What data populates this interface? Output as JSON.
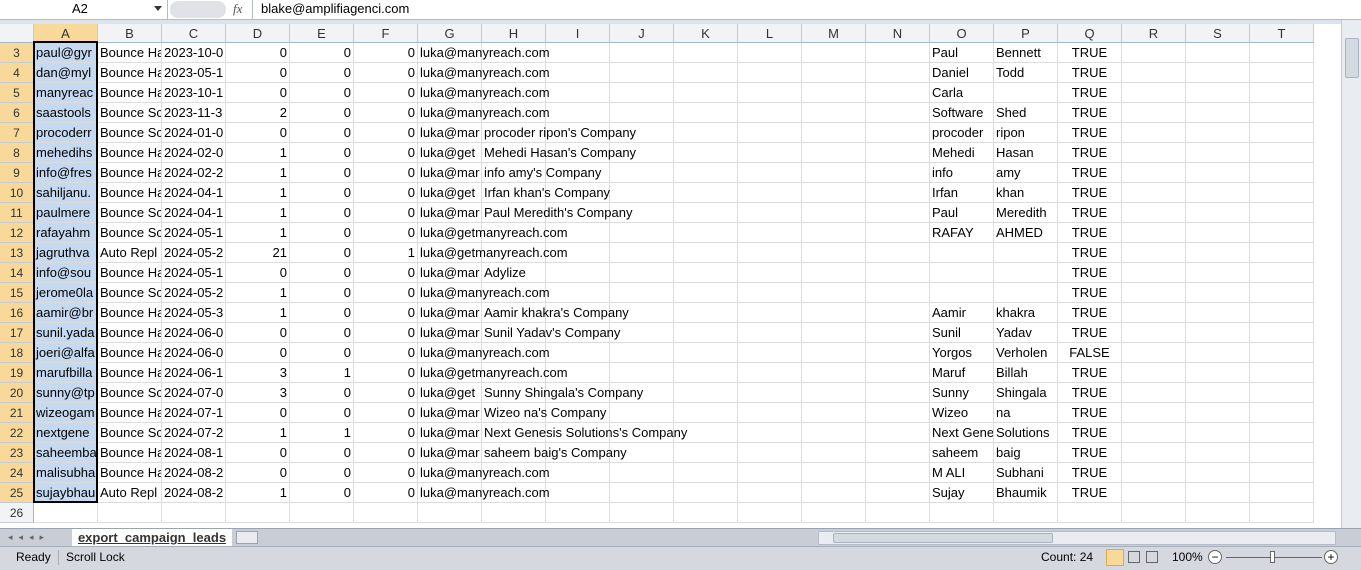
{
  "formula_bar": {
    "name_box": "A2",
    "function_icon": "fx",
    "content": "blake@amplifiagenci.com"
  },
  "columns": [
    "A",
    "B",
    "C",
    "D",
    "E",
    "F",
    "G",
    "H",
    "I",
    "J",
    "K",
    "L",
    "M",
    "N",
    "O",
    "P",
    "Q",
    "R",
    "S",
    "T"
  ],
  "rows": [
    {
      "number": 3,
      "cells": [
        "paul@gyr",
        "Bounce Ha",
        "2023-10-0",
        0,
        0,
        0,
        "luka@manyreach.com",
        null,
        null,
        null,
        null,
        null,
        null,
        null,
        "Paul",
        "Bennett",
        "TRUE",
        null,
        null,
        null
      ]
    },
    {
      "number": 4,
      "cells": [
        "dan@myl",
        "Bounce Ha",
        "2023-05-1",
        0,
        0,
        0,
        "luka@manyreach.com",
        null,
        null,
        null,
        null,
        null,
        null,
        null,
        "Daniel",
        "Todd",
        "TRUE",
        null,
        null,
        null
      ]
    },
    {
      "number": 5,
      "cells": [
        "manyreac",
        "Bounce Ha",
        "2023-10-1",
        0,
        0,
        0,
        "luka@manyreach.com",
        null,
        null,
        null,
        null,
        null,
        null,
        null,
        "Carla",
        null,
        "TRUE",
        null,
        null,
        null
      ]
    },
    {
      "number": 6,
      "cells": [
        "saastools",
        "Bounce Sc",
        "2023-11-3",
        2,
        0,
        0,
        "luka@manyreach.com",
        null,
        null,
        null,
        null,
        null,
        null,
        null,
        "Software",
        "Shed",
        "TRUE",
        null,
        null,
        null
      ]
    },
    {
      "number": 7,
      "cells": [
        "procoderr",
        "Bounce Sc",
        "2024-01-0",
        0,
        0,
        0,
        "luka@mar",
        "procoder ripon's Company",
        null,
        null,
        null,
        null,
        null,
        null,
        "procoder",
        "ripon",
        "TRUE",
        null,
        null,
        null
      ]
    },
    {
      "number": 8,
      "cells": [
        "mehedihs",
        "Bounce Ha",
        "2024-02-0",
        1,
        0,
        0,
        "luka@get",
        "Mehedi Hasan's Company",
        null,
        null,
        null,
        null,
        null,
        null,
        "Mehedi",
        "Hasan",
        "TRUE",
        null,
        null,
        null
      ]
    },
    {
      "number": 9,
      "cells": [
        "info@fres",
        "Bounce Ha",
        "2024-02-2",
        1,
        0,
        0,
        "luka@mar",
        "info amy's Company",
        null,
        null,
        null,
        null,
        null,
        null,
        "info",
        "amy",
        "TRUE",
        null,
        null,
        null
      ]
    },
    {
      "number": 10,
      "cells": [
        "sahiljanu.",
        "Bounce Ha",
        "2024-04-1",
        1,
        0,
        0,
        "luka@get",
        "Irfan khan's Company",
        null,
        null,
        null,
        null,
        null,
        null,
        "Irfan",
        "khan",
        "TRUE",
        null,
        null,
        null
      ]
    },
    {
      "number": 11,
      "cells": [
        "paulmere",
        "Bounce Sc",
        "2024-04-1",
        1,
        0,
        0,
        "luka@mar",
        "Paul Meredith's Company",
        null,
        null,
        null,
        null,
        null,
        null,
        "Paul",
        "Meredith",
        "TRUE",
        null,
        null,
        null
      ]
    },
    {
      "number": 12,
      "cells": [
        "rafayahm",
        "Bounce Sc",
        "2024-05-1",
        1,
        0,
        0,
        "luka@getmanyreach.com",
        null,
        null,
        null,
        null,
        null,
        null,
        null,
        "RAFAY",
        "AHMED",
        "TRUE",
        null,
        null,
        null
      ]
    },
    {
      "number": 13,
      "cells": [
        "jagruthva",
        "Auto Repl",
        "2024-05-2",
        21,
        0,
        1,
        "luka@getmanyreach.com",
        null,
        null,
        null,
        null,
        null,
        null,
        null,
        null,
        null,
        "TRUE",
        null,
        null,
        null
      ]
    },
    {
      "number": 14,
      "cells": [
        "info@sou",
        "Bounce Ha",
        "2024-05-1",
        0,
        0,
        0,
        "luka@mar",
        "Adylize",
        null,
        null,
        null,
        null,
        null,
        null,
        null,
        null,
        "TRUE",
        null,
        null,
        null
      ]
    },
    {
      "number": 15,
      "cells": [
        "jerome0la",
        "Bounce Sc",
        "2024-05-2",
        1,
        0,
        0,
        "luka@manyreach.com",
        null,
        null,
        null,
        null,
        null,
        null,
        null,
        null,
        null,
        "TRUE",
        null,
        null,
        null
      ]
    },
    {
      "number": 16,
      "cells": [
        "aamir@br",
        "Bounce Ha",
        "2024-05-3",
        1,
        0,
        0,
        "luka@mar",
        "Aamir khakra's Company",
        null,
        null,
        null,
        null,
        null,
        null,
        "Aamir",
        "khakra",
        "TRUE",
        null,
        null,
        null
      ]
    },
    {
      "number": 17,
      "cells": [
        "sunil.yada",
        "Bounce Ha",
        "2024-06-0",
        0,
        0,
        0,
        "luka@mar",
        "Sunil Yadav's Company",
        null,
        null,
        null,
        null,
        null,
        null,
        "Sunil",
        "Yadav",
        "TRUE",
        null,
        null,
        null
      ]
    },
    {
      "number": 18,
      "cells": [
        "joeri@alfa",
        "Bounce Ha",
        "2024-06-0",
        0,
        0,
        0,
        "luka@manyreach.com",
        null,
        null,
        null,
        null,
        null,
        null,
        null,
        "Yorgos",
        "Verholen",
        "FALSE",
        null,
        null,
        null
      ]
    },
    {
      "number": 19,
      "cells": [
        "marufbilla",
        "Bounce Ha",
        "2024-06-1",
        3,
        1,
        0,
        "luka@getmanyreach.com",
        null,
        null,
        null,
        null,
        null,
        null,
        null,
        "Maruf",
        "Billah",
        "TRUE",
        null,
        null,
        null
      ]
    },
    {
      "number": 20,
      "cells": [
        "sunny@tp",
        "Bounce Sc",
        "2024-07-0",
        3,
        0,
        0,
        "luka@get",
        "Sunny Shingala's Company",
        null,
        null,
        null,
        null,
        null,
        null,
        "Sunny",
        "Shingala",
        "TRUE",
        null,
        null,
        null
      ]
    },
    {
      "number": 21,
      "cells": [
        "wizeogam",
        "Bounce Ha",
        "2024-07-1",
        0,
        0,
        0,
        "luka@mar",
        "Wizeo na's Company",
        null,
        null,
        null,
        null,
        null,
        null,
        "Wizeo",
        "na",
        "TRUE",
        null,
        null,
        null
      ]
    },
    {
      "number": 22,
      "cells": [
        "nextgene",
        "Bounce Sc",
        "2024-07-2",
        1,
        1,
        0,
        "luka@mar",
        "Next Genesis Solutions's Company",
        null,
        null,
        null,
        null,
        null,
        null,
        "Next Gene",
        "Solutions",
        "TRUE",
        null,
        null,
        null
      ]
    },
    {
      "number": 23,
      "cells": [
        "saheemba",
        "Bounce Ha",
        "2024-08-1",
        0,
        0,
        0,
        "luka@mar",
        "saheem baig's Company",
        null,
        null,
        null,
        null,
        null,
        null,
        "saheem",
        "baig",
        "TRUE",
        null,
        null,
        null
      ]
    },
    {
      "number": 24,
      "cells": [
        "malisubha",
        "Bounce Ha",
        "2024-08-2",
        0,
        0,
        0,
        "luka@manyreach.com",
        null,
        null,
        null,
        null,
        null,
        null,
        null,
        "M ALI",
        "Subhani",
        "TRUE",
        null,
        null,
        null
      ]
    },
    {
      "number": 25,
      "cells": [
        "sujaybhau",
        "Auto Repl",
        "2024-08-2",
        1,
        0,
        0,
        "luka@manyreach.com",
        null,
        null,
        null,
        null,
        null,
        null,
        null,
        "Sujay",
        "Bhaumik",
        "TRUE",
        null,
        null,
        null
      ]
    },
    {
      "number": 26
    }
  ],
  "sheet_tab": "export_campaign_leads",
  "status_bar": {
    "mode": "Ready",
    "scroll_lock": "Scroll Lock",
    "count": "Count: 24",
    "zoom": "100%"
  }
}
